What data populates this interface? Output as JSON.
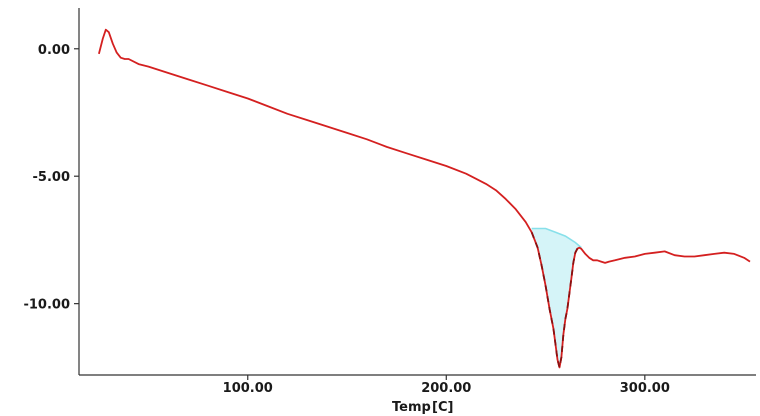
{
  "chart_data": {
    "type": "line",
    "title": "",
    "xlabel": "Temp",
    "xunit": "[C]",
    "ylabel": "",
    "xlim": [
      15,
      356
    ],
    "ylim": [
      -12.8,
      1.6
    ],
    "x_ticks": [
      100,
      200,
      300
    ],
    "x_tick_labels": [
      "100.00",
      "200.00",
      "300.00"
    ],
    "y_ticks": [
      0,
      -5,
      -10
    ],
    "y_tick_labels": [
      "0.00",
      "-5.00",
      "-10.00"
    ],
    "grid": false,
    "legend": "none",
    "colors": {
      "signal": "#d42020",
      "baseline": "#88e0ea",
      "peak_dash": "#8a1010",
      "axis": "#333333"
    },
    "series": [
      {
        "role": "signal",
        "x": [
          25,
          27,
          28.5,
          30,
          32,
          34,
          36,
          38,
          40,
          45,
          50,
          60,
          70,
          80,
          90,
          100,
          110,
          120,
          130,
          140,
          150,
          160,
          170,
          180,
          190,
          200,
          210,
          215,
          220,
          225,
          230,
          235,
          240,
          243,
          246,
          248,
          250,
          252,
          254,
          255,
          256,
          257,
          258,
          259,
          260,
          261,
          262,
          263,
          264,
          265,
          266,
          267,
          268,
          270,
          272,
          274,
          276,
          278,
          280,
          282,
          285,
          290,
          295,
          300,
          305,
          310,
          315,
          320,
          325,
          330,
          335,
          340,
          345,
          350,
          353
        ],
        "y": [
          -0.2,
          0.4,
          0.75,
          0.65,
          0.2,
          -0.15,
          -0.35,
          -0.4,
          -0.4,
          -0.6,
          -0.7,
          -0.95,
          -1.2,
          -1.45,
          -1.7,
          -1.95,
          -2.25,
          -2.55,
          -2.8,
          -3.05,
          -3.3,
          -3.55,
          -3.85,
          -4.1,
          -4.35,
          -4.6,
          -4.9,
          -5.1,
          -5.3,
          -5.55,
          -5.9,
          -6.3,
          -6.8,
          -7.2,
          -7.8,
          -8.5,
          -9.3,
          -10.2,
          -11.0,
          -11.6,
          -12.2,
          -12.5,
          -12.1,
          -11.2,
          -10.6,
          -10.2,
          -9.6,
          -9.0,
          -8.4,
          -8.0,
          -7.85,
          -7.8,
          -7.85,
          -8.05,
          -8.2,
          -8.3,
          -8.3,
          -8.35,
          -8.4,
          -8.35,
          -8.3,
          -8.2,
          -8.15,
          -8.05,
          -8.0,
          -7.95,
          -8.1,
          -8.15,
          -8.15,
          -8.1,
          -8.05,
          -8.0,
          -8.05,
          -8.2,
          -8.35
        ]
      },
      {
        "role": "baseline",
        "x": [
          243,
          250,
          255,
          260,
          265,
          268
        ],
        "y": [
          -7.05,
          -7.05,
          -7.2,
          -7.35,
          -7.6,
          -7.8
        ]
      }
    ]
  }
}
